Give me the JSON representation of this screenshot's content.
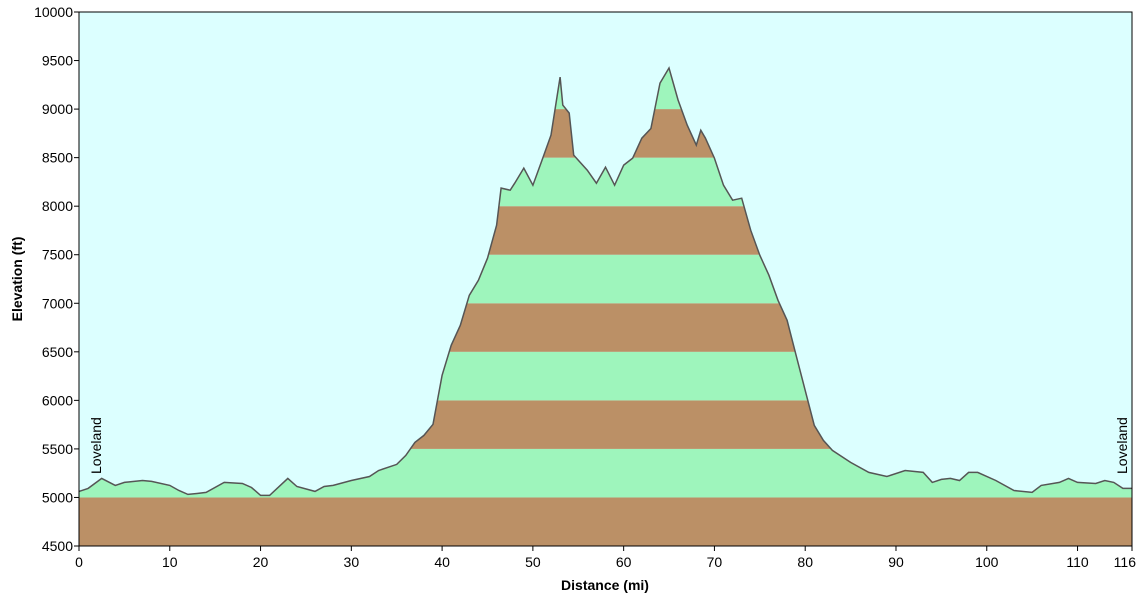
{
  "chart_data": {
    "type": "area",
    "x_label": "Distance   (mi)",
    "y_label": "Elevation (ft)",
    "x": [
      0,
      1,
      2.5,
      4,
      5,
      7,
      8,
      10,
      11,
      12,
      13,
      14,
      16,
      18,
      19,
      20,
      21,
      23,
      24,
      26,
      27,
      28,
      30,
      32,
      33,
      35,
      36,
      37,
      38,
      39,
      40,
      41,
      42,
      43,
      44,
      45,
      46,
      46.5,
      47.5,
      48,
      49,
      50,
      51,
      52,
      53,
      53.3,
      54,
      54.5,
      55,
      56,
      57,
      58,
      59,
      60,
      61,
      62,
      63,
      64,
      65,
      66,
      67,
      68,
      68.5,
      69,
      70,
      71,
      72,
      73,
      74,
      75,
      76,
      77,
      78,
      79,
      80,
      81,
      82,
      83,
      85,
      87,
      89,
      91,
      93,
      94,
      95,
      96,
      97,
      98,
      99,
      101,
      103,
      105,
      106,
      108,
      109,
      110,
      112,
      113,
      114,
      115,
      116
    ],
    "series": [
      {
        "name": "Elevation",
        "color": "#555555",
        "values": [
          5062,
          5093,
          5196,
          5124,
          5155,
          5175,
          5165,
          5124,
          5072,
          5031,
          5041,
          5052,
          5155,
          5144,
          5103,
          5021,
          5021,
          5196,
          5113,
          5062,
          5113,
          5124,
          5175,
          5216,
          5278,
          5340,
          5433,
          5567,
          5639,
          5753,
          6258,
          6567,
          6773,
          7082,
          7237,
          7464,
          7804,
          8186,
          8165,
          8237,
          8392,
          8216,
          8474,
          8732,
          9330,
          9041,
          8959,
          8526,
          8474,
          8371,
          8237,
          8402,
          8216,
          8423,
          8495,
          8700,
          8800,
          9268,
          9423,
          9093,
          8835,
          8629,
          8783,
          8701,
          8495,
          8216,
          8062,
          8082,
          7753,
          7495,
          7289,
          7031,
          6825,
          6464,
          6103,
          5742,
          5588,
          5485,
          5361,
          5258,
          5216,
          5278,
          5258,
          5155,
          5186,
          5196,
          5175,
          5258,
          5258,
          5175,
          5072,
          5052,
          5124,
          5155,
          5196,
          5155,
          5144,
          5175,
          5155,
          5093,
          5093
        ]
      }
    ],
    "xlim": [
      0,
      116
    ],
    "xticks": [
      0,
      10,
      20,
      30,
      40,
      50,
      60,
      70,
      80,
      90,
      100,
      110,
      116
    ],
    "ylim": [
      4500,
      10000
    ],
    "yticks": [
      4500,
      5000,
      5500,
      6000,
      6500,
      7000,
      7500,
      8000,
      8500,
      9000,
      9500,
      10000
    ],
    "band_colors": [
      "#bb9066",
      "#9ef5bc"
    ],
    "background": "#dcffff",
    "annotations": [
      {
        "text": "Loveland",
        "x": 0
      },
      {
        "text": "Loveland",
        "x": 116
      }
    ]
  }
}
